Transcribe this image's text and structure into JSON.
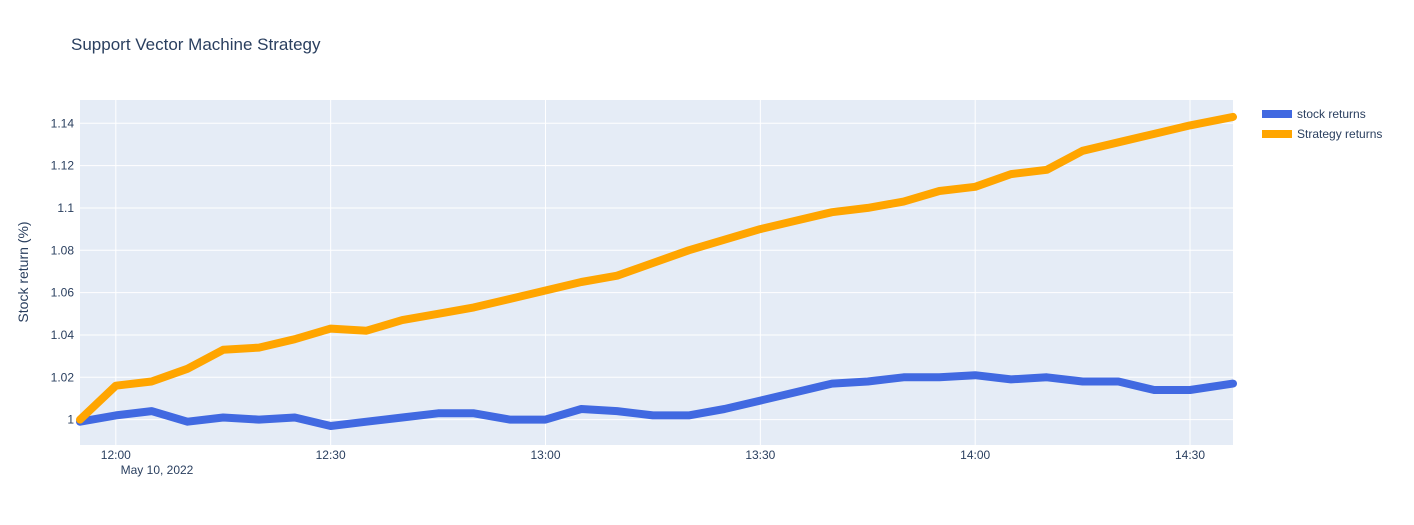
{
  "chart_data": {
    "type": "line",
    "title": "Support Vector Machine Strategy",
    "xlabel": "",
    "ylabel": "Stock return (%)",
    "x_axis": {
      "start": "2022-05-10 11:55",
      "end": "2022-05-10 14:36",
      "ticks": [
        "12:00",
        "12:30",
        "13:00",
        "13:30",
        "14:00",
        "14:30"
      ],
      "sublabel": "May 10, 2022"
    },
    "y_axis": {
      "range": [
        0.988,
        1.151
      ],
      "ticks": [
        1.0,
        1.02,
        1.04,
        1.06,
        1.08,
        1.1,
        1.12,
        1.14
      ],
      "tick_labels": [
        "1",
        "1.02",
        "1.04",
        "1.06",
        "1.08",
        "1.1",
        "1.12",
        "1.14"
      ]
    },
    "grid": true,
    "legend_position": "top-right",
    "series": [
      {
        "name": "stock returns",
        "color": "#4169e1",
        "x": [
          "11:55",
          "12:00",
          "12:05",
          "12:10",
          "12:15",
          "12:20",
          "12:25",
          "12:30",
          "12:35",
          "12:40",
          "12:45",
          "12:50",
          "12:55",
          "13:00",
          "13:05",
          "13:10",
          "13:15",
          "13:20",
          "13:25",
          "13:30",
          "13:35",
          "13:40",
          "13:45",
          "13:50",
          "13:55",
          "14:00",
          "14:05",
          "14:10",
          "14:15",
          "14:20",
          "14:25",
          "14:30",
          "14:36"
        ],
        "y": [
          0.999,
          1.002,
          1.004,
          0.999,
          1.001,
          1.0,
          1.001,
          0.997,
          0.999,
          1.001,
          1.003,
          1.003,
          1.0,
          1.0,
          1.005,
          1.004,
          1.002,
          1.002,
          1.005,
          1.009,
          1.013,
          1.017,
          1.018,
          1.02,
          1.02,
          1.021,
          1.019,
          1.02,
          1.018,
          1.018,
          1.014,
          1.014,
          1.017
        ]
      },
      {
        "name": "Strategy returns",
        "color": "#ffa500",
        "x": [
          "11:55",
          "12:00",
          "12:05",
          "12:10",
          "12:15",
          "12:20",
          "12:25",
          "12:30",
          "12:35",
          "12:40",
          "12:45",
          "12:50",
          "12:55",
          "13:00",
          "13:05",
          "13:10",
          "13:15",
          "13:20",
          "13:25",
          "13:30",
          "13:35",
          "13:40",
          "13:45",
          "13:50",
          "13:55",
          "14:00",
          "14:05",
          "14:10",
          "14:15",
          "14:20",
          "14:25",
          "14:30",
          "14:36"
        ],
        "y": [
          1.0,
          1.016,
          1.018,
          1.024,
          1.033,
          1.034,
          1.038,
          1.043,
          1.042,
          1.047,
          1.05,
          1.053,
          1.057,
          1.061,
          1.065,
          1.068,
          1.074,
          1.08,
          1.085,
          1.09,
          1.094,
          1.098,
          1.1,
          1.103,
          1.108,
          1.11,
          1.116,
          1.118,
          1.127,
          1.131,
          1.135,
          1.139,
          1.143
        ]
      }
    ]
  }
}
